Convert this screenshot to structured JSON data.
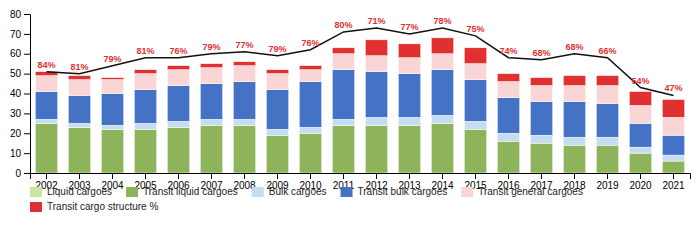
{
  "chart_data": {
    "type": "bar",
    "stacked": true,
    "legend": "bottom",
    "grid": false,
    "categories": [
      "2002",
      "2003",
      "2004",
      "2005",
      "2006",
      "2007",
      "2008",
      "2009",
      "2010",
      "2011",
      "2012",
      "2013",
      "2014",
      "2015",
      "2016",
      "2017",
      "2018",
      "2019",
      "2020",
      "2021"
    ],
    "series": [
      {
        "name": "Liquid cargoes",
        "color": "#c8e6a0",
        "values": [
          null,
          null,
          null,
          null,
          null,
          null,
          null,
          null,
          null,
          null,
          null,
          null,
          null,
          null,
          null,
          null,
          null,
          null,
          null,
          null
        ]
      },
      {
        "name": "Transit liquid cargoes",
        "color": "#8db45a",
        "values": [
          25,
          23,
          22,
          22,
          23,
          24,
          24,
          19,
          20,
          24,
          24,
          24,
          25,
          22,
          16,
          15,
          14,
          14,
          10,
          6
        ]
      },
      {
        "name": "Bulk cargoes",
        "color": "#c5ddf0",
        "values": [
          2,
          2,
          2,
          3,
          3,
          3,
          3,
          3,
          3,
          3,
          4,
          4,
          4,
          4,
          4,
          4,
          4,
          4,
          3,
          3
        ]
      },
      {
        "name": "Transit bulk cargoes",
        "color": "#4472c4",
        "values": [
          14,
          14,
          16,
          17,
          18,
          18,
          19,
          20,
          23,
          25,
          23,
          22,
          23,
          21,
          18,
          17,
          18,
          17,
          12,
          10
        ]
      },
      {
        "name": "Transit general cargoes",
        "color": "#f9d5d5",
        "values": [
          8,
          8,
          7,
          8,
          8,
          8,
          8,
          8,
          6,
          8,
          8,
          8,
          8,
          8,
          8,
          8,
          8,
          9,
          9,
          9
        ]
      },
      {
        "name": "Transit cargo structure %",
        "color": "#e03030",
        "values": [
          2,
          2,
          1,
          2,
          2,
          2,
          2,
          2,
          2,
          3,
          8,
          7,
          8,
          8,
          4,
          4,
          5,
          5,
          7,
          9
        ]
      },
      {
        "type": "line",
        "color": "#111111",
        "values": [
          51,
          50,
          54,
          58,
          58,
          60,
          61,
          59,
          62,
          71,
          73,
          70,
          73,
          69,
          58,
          57,
          60,
          58,
          43,
          39
        ]
      }
    ],
    "annotations": [
      {
        "text": "84%",
        "color": "#e03030"
      },
      {
        "text": "81%",
        "color": "#e03030"
      },
      {
        "text": "79%",
        "color": "#e03030"
      },
      {
        "text": "81%",
        "color": "#e03030"
      },
      {
        "text": "76%",
        "color": "#e03030"
      },
      {
        "text": "79%",
        "color": "#e03030"
      },
      {
        "text": "77%",
        "color": "#e03030"
      },
      {
        "text": "79%",
        "color": "#e03030"
      },
      {
        "text": "76%",
        "color": "#e03030"
      },
      {
        "text": "80%",
        "color": "#e03030"
      },
      {
        "text": "71%",
        "color": "#e03030"
      },
      {
        "text": "77%",
        "color": "#e03030"
      },
      {
        "text": "78%",
        "color": "#e03030"
      },
      {
        "text": "75%",
        "color": "#e03030"
      },
      {
        "text": "74%",
        "color": "#e03030"
      },
      {
        "text": "68%",
        "color": "#e03030"
      },
      {
        "text": "68%",
        "color": "#e03030"
      },
      {
        "text": "66%",
        "color": "#e03030"
      },
      {
        "text": "54%",
        "color": "#e03030"
      },
      {
        "text": "47%",
        "color": "#e03030"
      }
    ],
    "ylim": [
      0,
      80
    ],
    "yticks": [
      0,
      10,
      20,
      30,
      40,
      50,
      60,
      70,
      80
    ]
  }
}
